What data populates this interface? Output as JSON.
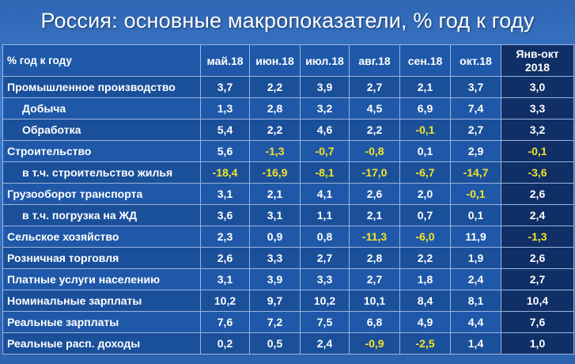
{
  "title": "Россия: основные макропоказатели, % год к году",
  "colors": {
    "header_bg": "#1f58a8",
    "summary_bg": "#0f2f66",
    "negative": "#f4e32a",
    "text": "#ffffff"
  },
  "table": {
    "head": {
      "label": "% год к году",
      "months": [
        "май.18",
        "июн.18",
        "июл.18",
        "авг.18",
        "сен.18",
        "окт.18"
      ],
      "summary_line1": "Янв-окт",
      "summary_line2": "2018"
    },
    "rows": [
      {
        "label": "Промышленное производство",
        "values": [
          "3,7",
          "2,2",
          "3,9",
          "2,7",
          "2,1",
          "3,7"
        ],
        "summary": "3,0"
      },
      {
        "label": "Добыча",
        "values": [
          "1,3",
          "2,8",
          "3,2",
          "4,5",
          "6,9",
          "7,4"
        ],
        "summary": "3,3"
      },
      {
        "label": "Обработка",
        "values": [
          "5,4",
          "2,2",
          "4,6",
          "2,2",
          "-0,1",
          "2,7"
        ],
        "summary": "3,2"
      },
      {
        "label": "Строительство",
        "values": [
          "5,6",
          "-1,3",
          "-0,7",
          "-0,8",
          "0,1",
          "2,9"
        ],
        "summary": "-0,1"
      },
      {
        "label": "в т.ч. строительство жилья",
        "values": [
          "-18,4",
          "-16,9",
          "-8,1",
          "-17,0",
          "-6,7",
          "-14,7"
        ],
        "summary": "-3,6"
      },
      {
        "label": "Грузооборот транспорта",
        "values": [
          "3,1",
          "2,1",
          "4,1",
          "2,6",
          "2,0",
          "-0,1"
        ],
        "summary": "2,6"
      },
      {
        "label": "в т.ч. погрузка на ЖД",
        "values": [
          "3,6",
          "3,1",
          "1,1",
          "2,1",
          "0,7",
          "0,1"
        ],
        "summary": "2,4"
      },
      {
        "label": "Сельское хозяйство",
        "values": [
          "2,3",
          "0,9",
          "0,8",
          "-11,3",
          "-6,0",
          "11,9"
        ],
        "summary": "-1,3"
      },
      {
        "label": "Розничная торговля",
        "values": [
          "2,6",
          "3,3",
          "2,7",
          "2,8",
          "2,2",
          "1,9"
        ],
        "summary": "2,6"
      },
      {
        "label": "Платные услуги населению",
        "values": [
          "3,1",
          "3,9",
          "3,3",
          "2,7",
          "1,8",
          "2,4"
        ],
        "summary": "2,7"
      },
      {
        "label": "Номинальные зарплаты",
        "values": [
          "10,2",
          "9,7",
          "10,2",
          "10,1",
          "8,4",
          "8,1"
        ],
        "summary": "10,4"
      },
      {
        "label": "Реальные зарплаты",
        "values": [
          "7,6",
          "7,2",
          "7,5",
          "6,8",
          "4,9",
          "4,4"
        ],
        "summary": "7,6"
      },
      {
        "label": "Реальные расп. доходы",
        "values": [
          "0,2",
          "0,5",
          "2,4",
          "-0,9",
          "-2,5",
          "1,4"
        ],
        "summary": "1,0"
      }
    ]
  }
}
